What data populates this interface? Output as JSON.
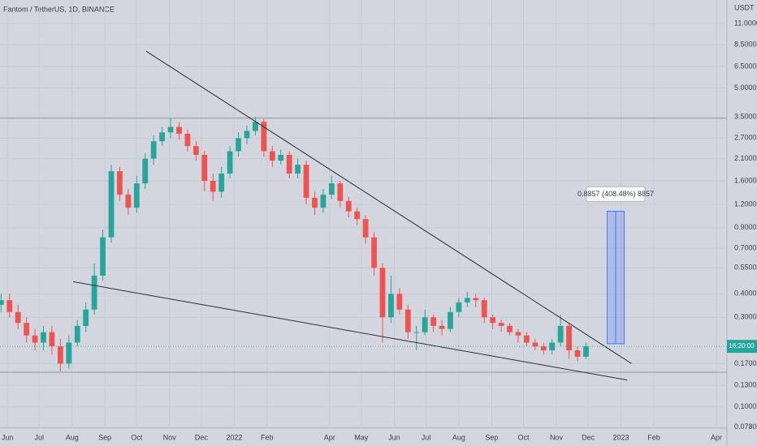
{
  "chart_data": {
    "type": "candlestick",
    "title": "Fantom / TetherUS, 1D, BINANCE",
    "y_unit": "USDT",
    "log_scale": true,
    "grid": true,
    "up_color": "#26a69a",
    "down_color": "#ef5350",
    "x": [
      -6,
      2,
      10,
      18,
      26,
      34,
      42,
      50,
      58,
      66,
      74,
      82,
      90,
      98,
      106,
      114,
      122,
      130,
      138,
      146,
      154,
      162,
      170,
      178,
      186,
      194,
      202,
      210,
      218,
      226,
      234,
      242,
      250,
      258,
      266,
      274,
      282,
      290,
      298,
      306,
      314,
      322,
      330,
      338,
      346,
      354,
      362,
      370,
      378,
      386,
      394,
      402,
      410,
      418,
      426,
      434,
      442,
      450,
      458,
      466,
      474,
      482,
      490,
      498,
      506,
      514,
      522,
      530,
      538,
      546
    ],
    "open": [
      0.35,
      0.37,
      0.32,
      0.28,
      0.24,
      0.22,
      0.25,
      0.21,
      0.17,
      0.22,
      0.27,
      0.33,
      0.5,
      0.8,
      1.8,
      1.35,
      1.15,
      1.55,
      2.1,
      2.6,
      2.9,
      3.1,
      2.85,
      2.45,
      2.2,
      1.6,
      1.4,
      1.75,
      2.3,
      2.7,
      2.95,
      3.3,
      2.3,
      2.05,
      2.2,
      1.75,
      1.95,
      1.3,
      1.15,
      1.35,
      1.55,
      1.25,
      1.1,
      1.0,
      0.8,
      0.55,
      0.3,
      0.4,
      0.33,
      0.25,
      0.25,
      0.3,
      0.27,
      0.26,
      0.32,
      0.36,
      0.38,
      0.37,
      0.3,
      0.28,
      0.27,
      0.25,
      0.24,
      0.22,
      0.21,
      0.2,
      0.22,
      0.27,
      0.2,
      0.185
    ],
    "high": [
      0.4,
      0.4,
      0.35,
      0.3,
      0.26,
      0.27,
      0.27,
      0.23,
      0.24,
      0.29,
      0.36,
      0.58,
      0.88,
      1.95,
      1.9,
      1.45,
      1.7,
      2.25,
      2.8,
      3.1,
      3.45,
      3.3,
      3.0,
      2.6,
      2.3,
      1.75,
      1.9,
      2.45,
      2.9,
      3.15,
      3.5,
      3.4,
      2.45,
      2.35,
      2.3,
      2.1,
      2.05,
      1.4,
      1.45,
      1.7,
      1.6,
      1.32,
      1.15,
      1.05,
      0.85,
      0.58,
      0.5,
      0.43,
      0.35,
      0.27,
      0.33,
      0.31,
      0.29,
      0.34,
      0.38,
      0.41,
      0.4,
      0.38,
      0.31,
      0.29,
      0.28,
      0.26,
      0.25,
      0.23,
      0.22,
      0.23,
      0.31,
      0.28,
      0.21,
      0.22
    ],
    "low": [
      0.32,
      0.3,
      0.26,
      0.22,
      0.2,
      0.2,
      0.19,
      0.155,
      0.16,
      0.21,
      0.25,
      0.31,
      0.47,
      0.75,
      1.25,
      1.05,
      1.08,
      1.45,
      1.95,
      2.45,
      2.7,
      2.65,
      2.3,
      2.05,
      1.4,
      1.25,
      1.3,
      1.65,
      2.15,
      2.5,
      2.8,
      2.15,
      1.9,
      1.95,
      1.65,
      1.65,
      1.2,
      1.05,
      1.08,
      1.28,
      1.15,
      1.02,
      0.93,
      0.74,
      0.5,
      0.22,
      0.28,
      0.31,
      0.23,
      0.2,
      0.24,
      0.25,
      0.24,
      0.25,
      0.3,
      0.34,
      0.34,
      0.28,
      0.26,
      0.25,
      0.24,
      0.22,
      0.21,
      0.2,
      0.19,
      0.19,
      0.21,
      0.18,
      0.175,
      0.18
    ],
    "close": [
      0.37,
      0.32,
      0.28,
      0.24,
      0.22,
      0.25,
      0.21,
      0.17,
      0.22,
      0.27,
      0.33,
      0.5,
      0.8,
      1.8,
      1.35,
      1.15,
      1.55,
      2.1,
      2.6,
      2.9,
      3.1,
      2.85,
      2.45,
      2.2,
      1.6,
      1.4,
      1.75,
      2.3,
      2.7,
      2.95,
      3.3,
      2.3,
      2.05,
      2.2,
      1.75,
      1.95,
      1.3,
      1.15,
      1.35,
      1.55,
      1.25,
      1.1,
      1.0,
      0.8,
      0.55,
      0.3,
      0.4,
      0.33,
      0.25,
      0.25,
      0.3,
      0.27,
      0.26,
      0.32,
      0.36,
      0.38,
      0.37,
      0.3,
      0.28,
      0.27,
      0.25,
      0.24,
      0.22,
      0.21,
      0.2,
      0.22,
      0.27,
      0.2,
      0.185,
      0.21
    ],
    "xlim": [
      -7,
      679
    ],
    "ylim": [
      0.077,
      14.7
    ],
    "xticks": [
      {
        "value": 0,
        "label": "Jun"
      },
      {
        "value": 30,
        "label": "Jul"
      },
      {
        "value": 61,
        "label": "Aug"
      },
      {
        "value": 92,
        "label": "Sep"
      },
      {
        "value": 122,
        "label": "Oct"
      },
      {
        "value": 153,
        "label": "Nov"
      },
      {
        "value": 183,
        "label": "Dec"
      },
      {
        "value": 214,
        "label": "2022"
      },
      {
        "value": 245,
        "label": "Feb"
      },
      {
        "value": 304,
        "label": "Apr"
      },
      {
        "value": 334,
        "label": "May"
      },
      {
        "value": 365,
        "label": "Jun"
      },
      {
        "value": 395,
        "label": "Jul"
      },
      {
        "value": 426,
        "label": "Aug"
      },
      {
        "value": 457,
        "label": "Sep"
      },
      {
        "value": 487,
        "label": "Oct"
      },
      {
        "value": 518,
        "label": "Nov"
      },
      {
        "value": 548,
        "label": "Dec"
      },
      {
        "value": 579,
        "label": "2023"
      },
      {
        "value": 610,
        "label": "Feb"
      },
      {
        "value": 669,
        "label": "Apr"
      }
    ],
    "yticks": [
      {
        "value": 11,
        "label": "11.0000"
      },
      {
        "value": 8.5,
        "label": "8.5000"
      },
      {
        "value": 6.5,
        "label": "6.5000"
      },
      {
        "value": 5,
        "label": "5.0000"
      },
      {
        "value": 3.5,
        "label": "3.5000"
      },
      {
        "value": 2.7,
        "label": "2.7000"
      },
      {
        "value": 2.1,
        "label": "2.1000"
      },
      {
        "value": 1.6,
        "label": "1.6000"
      },
      {
        "value": 1.2,
        "label": "1.2000"
      },
      {
        "value": 0.9,
        "label": "0.9000"
      },
      {
        "value": 0.7,
        "label": "0.7000"
      },
      {
        "value": 0.55,
        "label": "0.5500"
      },
      {
        "value": 0.4,
        "label": "0.4000"
      },
      {
        "value": 0.3,
        "label": "0.3000"
      },
      {
        "value": 0.17,
        "label": "0.1700"
      },
      {
        "value": 0.13,
        "label": "0.1300"
      },
      {
        "value": 0.1,
        "label": "0.1000"
      },
      {
        "value": 0.078,
        "label": "0.0780"
      }
    ],
    "trendlines": [
      {
        "x": [
          131,
          589
        ],
        "y": [
          7.84,
          0.17
        ]
      },
      {
        "x": [
          62,
          585
        ],
        "y": [
          0.464,
          0.139
        ]
      }
    ],
    "horizontal_lines": [
      3.45,
      0.153
    ],
    "measure": {
      "x": [
        566,
        582
      ],
      "y": [
        0.2168,
        1.1025
      ],
      "label": "0.8857 (408.48%) 8857"
    },
    "countdown": "16:20:00"
  }
}
